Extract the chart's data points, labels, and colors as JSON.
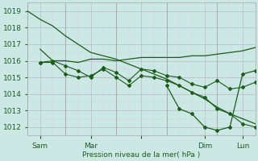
{
  "bg_color": "#cce8e4",
  "grid_major_color": "#b8b8c8",
  "grid_minor_color": "#d0d0dc",
  "line_color": "#1a5c1a",
  "xlabel": "Pression niveau de la mer( hPa )",
  "ylim": [
    1011.5,
    1019.5
  ],
  "xlim": [
    0,
    108
  ],
  "yticks": [
    1012,
    1013,
    1014,
    1015,
    1016,
    1017,
    1018,
    1019
  ],
  "xtick_positions": [
    6,
    30,
    54,
    84,
    102
  ],
  "xtick_labels": [
    "Sam",
    "Mar",
    "",
    "Dim",
    "Lun"
  ],
  "vlines": [
    0,
    18,
    42,
    66,
    90,
    108
  ],
  "line_diagonal": {
    "x": [
      0,
      6,
      12,
      18,
      24,
      30,
      36,
      42,
      48,
      54,
      60,
      66,
      72,
      78,
      84,
      90,
      96,
      102,
      108
    ],
    "y": [
      1019.0,
      1018.5,
      1018.1,
      1017.5,
      1017.0,
      1016.5,
      1016.3,
      1016.1,
      1015.8,
      1015.5,
      1015.2,
      1014.9,
      1014.5,
      1014.1,
      1013.7,
      1013.2,
      1012.8,
      1012.5,
      1012.2
    ]
  },
  "line_flat": {
    "x": [
      6,
      12,
      18,
      24,
      30,
      36,
      42,
      48,
      54,
      60,
      66,
      72,
      78,
      84,
      90,
      96,
      102,
      108
    ],
    "y": [
      1016.7,
      1016.0,
      1016.0,
      1015.9,
      1016.1,
      1016.1,
      1016.0,
      1016.1,
      1016.2,
      1016.2,
      1016.2,
      1016.2,
      1016.3,
      1016.3,
      1016.4,
      1016.5,
      1016.6,
      1016.8
    ]
  },
  "line_markers": {
    "x": [
      6,
      12,
      18,
      24,
      30,
      36,
      42,
      48,
      54,
      60,
      66,
      72,
      78,
      84,
      90,
      96,
      102,
      108
    ],
    "y": [
      1015.9,
      1016.0,
      1015.7,
      1015.4,
      1015.0,
      1015.6,
      1015.3,
      1014.8,
      1015.5,
      1015.4,
      1015.1,
      1015.0,
      1014.6,
      1014.4,
      1014.8,
      1014.3,
      1014.4,
      1014.7
    ]
  },
  "line_lower": {
    "x": [
      6,
      12,
      18,
      24,
      30,
      36,
      42,
      48,
      54,
      60,
      66,
      72,
      78,
      84,
      90,
      96,
      102,
      108
    ],
    "y": [
      1015.9,
      1015.9,
      1015.2,
      1015.0,
      1015.1,
      1015.5,
      1015.0,
      1014.5,
      1015.1,
      1015.0,
      1014.8,
      1014.5,
      1014.1,
      1013.8,
      1013.1,
      1012.8,
      1012.2,
      1012.0
    ]
  },
  "line_min": {
    "x": [
      66,
      72,
      78,
      84,
      90,
      96,
      102,
      108
    ],
    "y": [
      1014.5,
      1013.1,
      1012.8,
      1012.0,
      1011.8,
      1012.0,
      1015.2,
      1015.4
    ]
  }
}
